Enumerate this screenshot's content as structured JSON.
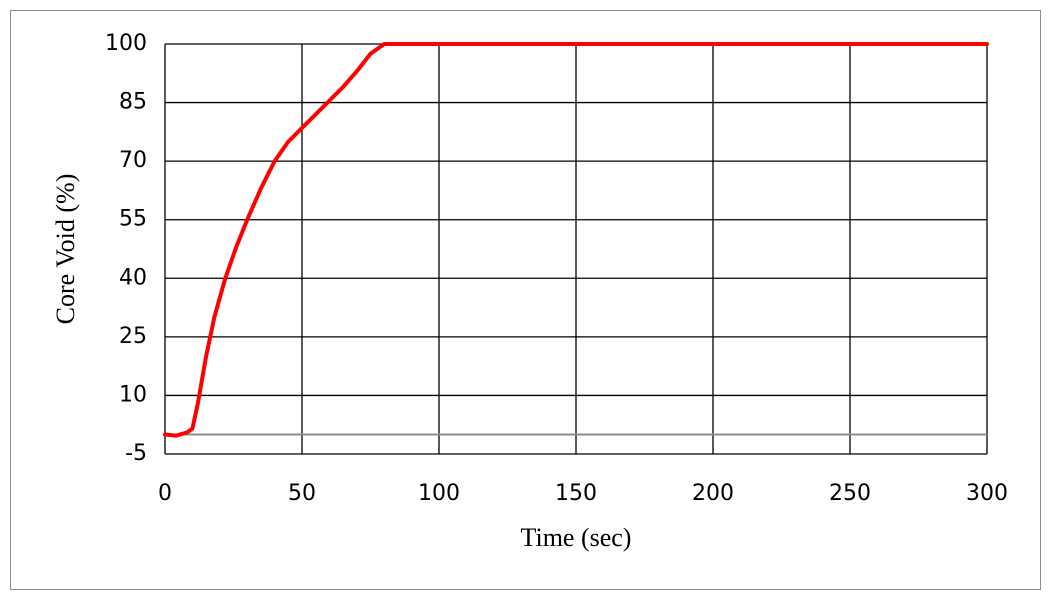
{
  "chart_data": {
    "type": "line",
    "x_label": "Time (sec)",
    "y_label": "Core Void (%)",
    "series": [
      {
        "color": "#ff0000",
        "x": [
          0,
          4,
          8,
          10,
          12,
          15,
          18,
          22,
          26,
          30,
          35,
          40,
          45,
          50,
          55,
          60,
          65,
          70,
          75,
          80,
          90,
          300
        ],
        "values": [
          0,
          -0.3,
          0.5,
          1.5,
          8,
          20,
          30,
          40,
          48,
          55,
          63,
          70,
          75,
          78.5,
          82,
          85.5,
          89,
          93,
          97.5,
          100,
          100,
          100
        ]
      }
    ],
    "xlim": [
      0,
      300
    ],
    "xticks": [
      0,
      50,
      100,
      150,
      200,
      250,
      300
    ],
    "ylim": [
      -5,
      100
    ],
    "yticks": [
      -5,
      10,
      25,
      40,
      55,
      70,
      85,
      100
    ],
    "grid": true,
    "zero_line": true
  }
}
